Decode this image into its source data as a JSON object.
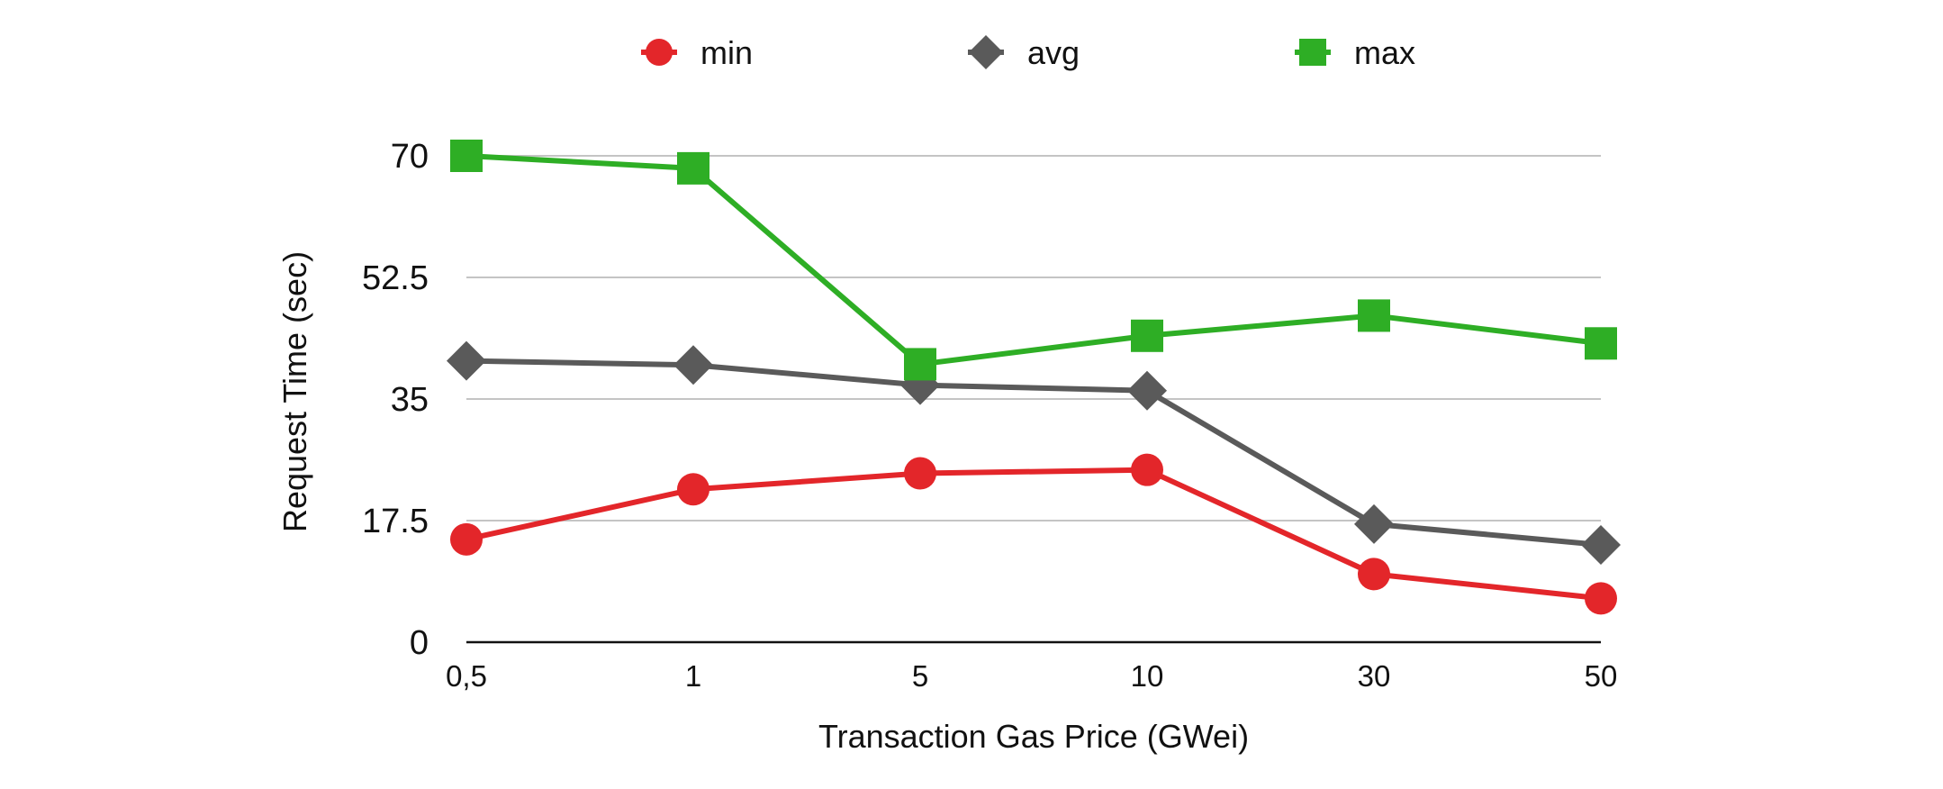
{
  "chart_data": {
    "type": "line",
    "categories": [
      "0,5",
      "1",
      "5",
      "10",
      "30",
      "50"
    ],
    "series": [
      {
        "name": "min",
        "values": [
          14.8,
          22.0,
          24.3,
          24.8,
          9.8,
          6.3
        ],
        "color": "#e3262a",
        "marker": "circle"
      },
      {
        "name": "avg",
        "values": [
          40.5,
          39.9,
          37.0,
          36.2,
          17.0,
          14.0
        ],
        "color": "#5a5a5a",
        "marker": "diamond"
      },
      {
        "name": "max",
        "values": [
          70.0,
          68.2,
          40.0,
          44.1,
          47.0,
          43.0
        ],
        "color": "#2eae25",
        "marker": "square"
      }
    ],
    "yticks": [
      "0",
      "17.5",
      "35",
      "52.5",
      "70"
    ],
    "ylim": [
      0,
      70
    ],
    "xlabel": "Transaction Gas Price (GWei)",
    "ylabel": "Request Time (sec)",
    "grid": true,
    "legend": "top"
  }
}
